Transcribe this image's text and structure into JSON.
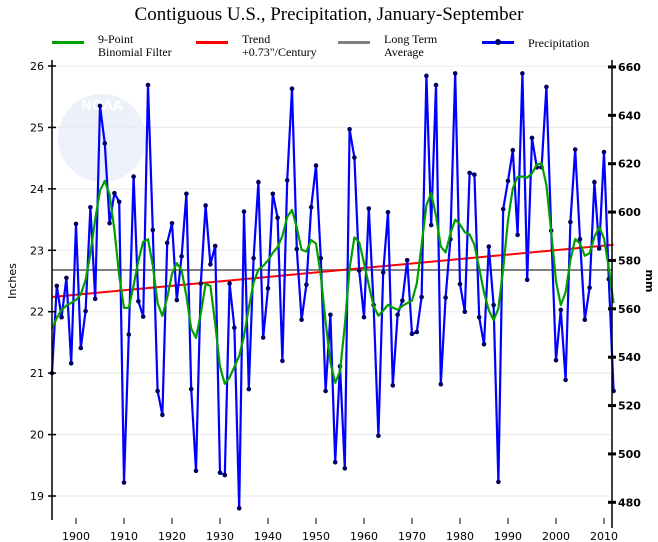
{
  "chart_data": {
    "type": "line",
    "title": "Contiguous U.S., Precipitation, January-September",
    "xlabel": "",
    "ylabel": "Inches",
    "ylabel_right": "mm",
    "xlim": [
      1895,
      2012
    ],
    "ylim": [
      18.6,
      26.1
    ],
    "ylim_right_mm": [
      472.4,
      662.9
    ],
    "grid": true,
    "legend_position": "top",
    "x_ticks": [
      1900,
      1910,
      1920,
      1930,
      1940,
      1950,
      1960,
      1970,
      1980,
      1990,
      2000,
      2010
    ],
    "y_ticks": [
      19,
      20,
      21,
      22,
      23,
      24,
      25,
      26
    ],
    "y_ticks_right": [
      480,
      500,
      520,
      540,
      560,
      580,
      600,
      620,
      640,
      660
    ],
    "legend": [
      {
        "key": "filter",
        "line1": "9-Point",
        "line2": "Binomial Filter",
        "color": "#00a000"
      },
      {
        "key": "trend",
        "line1": "Trend",
        "line2": "+0.73\"/Century",
        "color": "#ff0000"
      },
      {
        "key": "average",
        "line1": "Long Term",
        "line2": "Average",
        "color": "#808080"
      },
      {
        "key": "precip",
        "line1": "Precipitation",
        "line2": "",
        "color": "#0000ff"
      }
    ],
    "trend": {
      "label": "+0.73\"/Century",
      "start": [
        1895,
        22.24
      ],
      "end": [
        2012,
        23.09
      ]
    },
    "long_term_average": 22.68,
    "x": [
      1895,
      1896,
      1897,
      1898,
      1899,
      1900,
      1901,
      1902,
      1903,
      1904,
      1905,
      1906,
      1907,
      1908,
      1909,
      1910,
      1911,
      1912,
      1913,
      1914,
      1915,
      1916,
      1917,
      1918,
      1919,
      1920,
      1921,
      1922,
      1923,
      1924,
      1925,
      1926,
      1927,
      1928,
      1929,
      1930,
      1931,
      1932,
      1933,
      1934,
      1935,
      1936,
      1937,
      1938,
      1939,
      1940,
      1941,
      1942,
      1943,
      1944,
      1945,
      1946,
      1947,
      1948,
      1949,
      1950,
      1951,
      1952,
      1953,
      1954,
      1955,
      1956,
      1957,
      1958,
      1959,
      1960,
      1961,
      1962,
      1963,
      1964,
      1965,
      1966,
      1967,
      1968,
      1969,
      1970,
      1971,
      1972,
      1973,
      1974,
      1975,
      1976,
      1977,
      1978,
      1979,
      1980,
      1981,
      1982,
      1983,
      1984,
      1985,
      1986,
      1987,
      1988,
      1989,
      1990,
      1991,
      1992,
      1993,
      1994,
      1995,
      1996,
      1997,
      1998,
      1999,
      2000,
      2001,
      2002,
      2003,
      2004,
      2005,
      2006,
      2007,
      2008,
      2009,
      2010,
      2011,
      2012
    ],
    "series": [
      {
        "name": "Precipitation",
        "values": [
          21.0,
          22.42,
          21.91,
          22.55,
          21.16,
          23.43,
          21.41,
          22.01,
          23.7,
          22.21,
          25.35,
          24.74,
          23.44,
          23.93,
          23.79,
          19.22,
          21.63,
          24.2,
          22.17,
          21.92,
          25.69,
          23.33,
          20.71,
          20.32,
          23.12,
          23.44,
          22.19,
          22.9,
          23.92,
          20.74,
          19.41,
          22.46,
          23.73,
          22.77,
          23.07,
          19.38,
          19.34,
          22.46,
          21.74,
          18.8,
          23.63,
          20.74,
          22.87,
          24.11,
          21.58,
          22.38,
          23.92,
          23.53,
          21.2,
          24.14,
          25.63,
          23.02,
          21.87,
          22.44,
          23.7,
          24.38,
          22.87,
          20.71,
          21.95,
          19.55,
          21.11,
          19.45,
          24.97,
          24.51,
          22.67,
          21.91,
          23.68,
          22.11,
          19.98,
          22.64,
          23.62,
          20.8,
          21.95,
          22.18,
          22.84,
          21.64,
          21.67,
          22.24,
          25.84,
          23.41,
          25.69,
          20.82,
          22.23,
          23.18,
          25.88,
          22.45,
          22.0,
          24.26,
          24.23,
          21.91,
          21.47,
          23.06,
          22.11,
          19.23,
          23.67,
          24.13,
          24.63,
          23.25,
          25.88,
          22.52,
          24.83,
          24.35,
          24.35,
          25.66,
          23.32,
          21.21,
          22.03,
          20.89,
          23.46,
          24.64,
          23.18,
          21.87,
          22.39,
          24.11,
          23.03,
          24.6,
          22.53,
          20.71
        ]
      }
    ]
  }
}
